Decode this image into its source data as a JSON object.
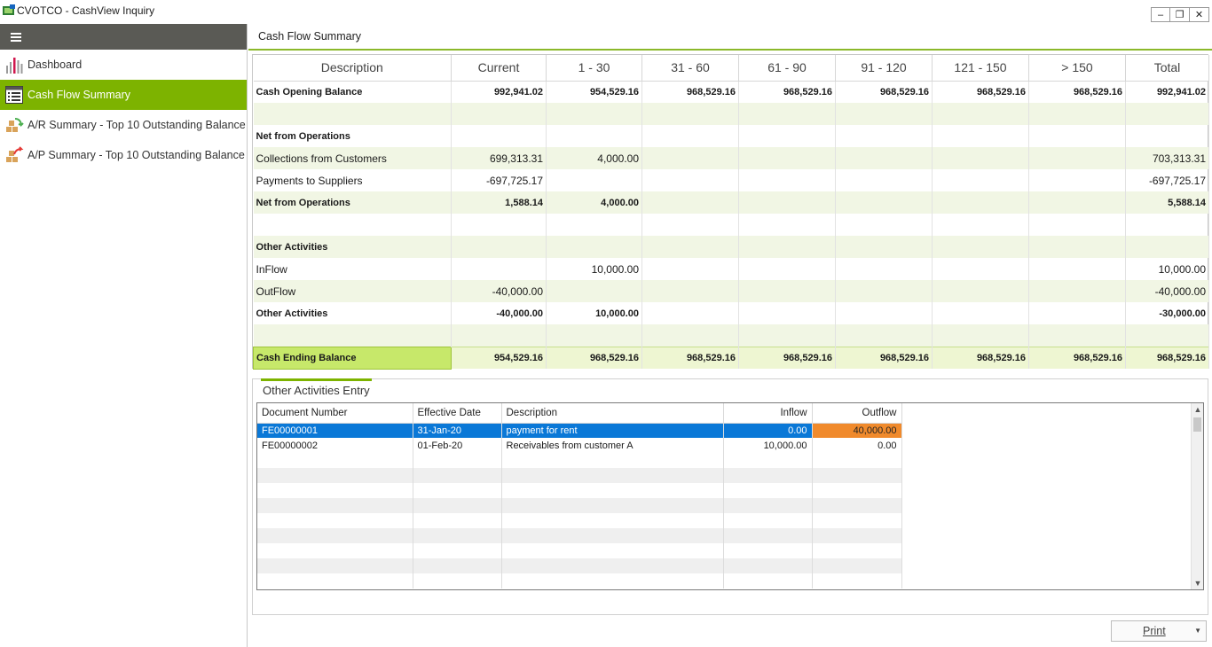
{
  "window": {
    "title": "CVOTCO - CashView Inquiry",
    "minimize": "–",
    "restore": "❐",
    "close": "✕"
  },
  "sidebar": {
    "items": [
      {
        "label": "Dashboard",
        "icon": "bar-chart-icon"
      },
      {
        "label": "Cash Flow Summary",
        "icon": "document-list-icon"
      },
      {
        "label": "A/R Summary - Top 10 Outstanding Balance",
        "icon": "boxes-green-arrow-icon"
      },
      {
        "label": "A/P Summary - Top 10 Outstanding Balance",
        "icon": "boxes-red-arrow-icon"
      }
    ],
    "active_index": 1,
    "accent": "#7db300"
  },
  "main": {
    "header": "Cash Flow Summary"
  },
  "summary": {
    "columns": [
      "Description",
      "Current",
      "1 - 30",
      "31 - 60",
      "61 - 90",
      "91 - 120",
      "121 - 150",
      "> 150",
      "Total"
    ],
    "rows": [
      {
        "style": "bold",
        "cells": [
          "Cash Opening Balance",
          "992,941.02",
          "954,529.16",
          "968,529.16",
          "968,529.16",
          "968,529.16",
          "968,529.16",
          "968,529.16",
          "992,941.02"
        ]
      },
      {
        "style": "alt",
        "cells": [
          "",
          "",
          "",
          "",
          "",
          "",
          "",
          "",
          ""
        ]
      },
      {
        "style": "bold",
        "cells": [
          "Net from Operations",
          "",
          "",
          "",
          "",
          "",
          "",
          "",
          ""
        ]
      },
      {
        "style": "alt",
        "cells": [
          "Collections from Customers",
          "699,313.31",
          "4,000.00",
          "",
          "",
          "",
          "",
          "",
          "703,313.31"
        ]
      },
      {
        "style": "normal",
        "cells": [
          "Payments to Suppliers",
          "-697,725.17",
          "",
          "",
          "",
          "",
          "",
          "",
          "-697,725.17"
        ]
      },
      {
        "style": "bold alt",
        "cells": [
          "Net from Operations",
          "1,588.14",
          "4,000.00",
          "",
          "",
          "",
          "",
          "",
          "5,588.14"
        ]
      },
      {
        "style": "normal",
        "cells": [
          "",
          "",
          "",
          "",
          "",
          "",
          "",
          "",
          ""
        ]
      },
      {
        "style": "bold alt",
        "cells": [
          "Other Activities",
          "",
          "",
          "",
          "",
          "",
          "",
          "",
          ""
        ]
      },
      {
        "style": "normal",
        "cells": [
          "InFlow",
          "",
          "10,000.00",
          "",
          "",
          "",
          "",
          "",
          "10,000.00"
        ]
      },
      {
        "style": "alt",
        "cells": [
          "OutFlow",
          "-40,000.00",
          "",
          "",
          "",
          "",
          "",
          "",
          "-40,000.00"
        ]
      },
      {
        "style": "bold",
        "cells": [
          "Other Activities",
          "-40,000.00",
          "10,000.00",
          "",
          "",
          "",
          "",
          "",
          "-30,000.00"
        ]
      },
      {
        "style": "alt",
        "cells": [
          "",
          "",
          "",
          "",
          "",
          "",
          "",
          "",
          ""
        ]
      },
      {
        "style": "bold ending",
        "cells": [
          "Cash Ending Balance",
          "954,529.16",
          "968,529.16",
          "968,529.16",
          "968,529.16",
          "968,529.16",
          "968,529.16",
          "968,529.16",
          "968,529.16"
        ]
      }
    ]
  },
  "entry": {
    "title": "Other Activities Entry",
    "columns": [
      "Document Number",
      "Effective Date",
      "Description",
      "Inflow",
      "Outflow"
    ],
    "rows": [
      {
        "selected": true,
        "cells": [
          "FE00000001",
          "31-Jan-20",
          "payment for rent",
          "0.00",
          "40,000.00"
        ]
      },
      {
        "selected": false,
        "cells": [
          "FE00000002",
          "01-Feb-20",
          "Receivables from customer A",
          "10,000.00",
          "0.00"
        ]
      }
    ],
    "selection_color": "#0a78d7",
    "highlight_color": "#f08a2c"
  },
  "print": {
    "label": "Print",
    "arrow": "▼"
  }
}
